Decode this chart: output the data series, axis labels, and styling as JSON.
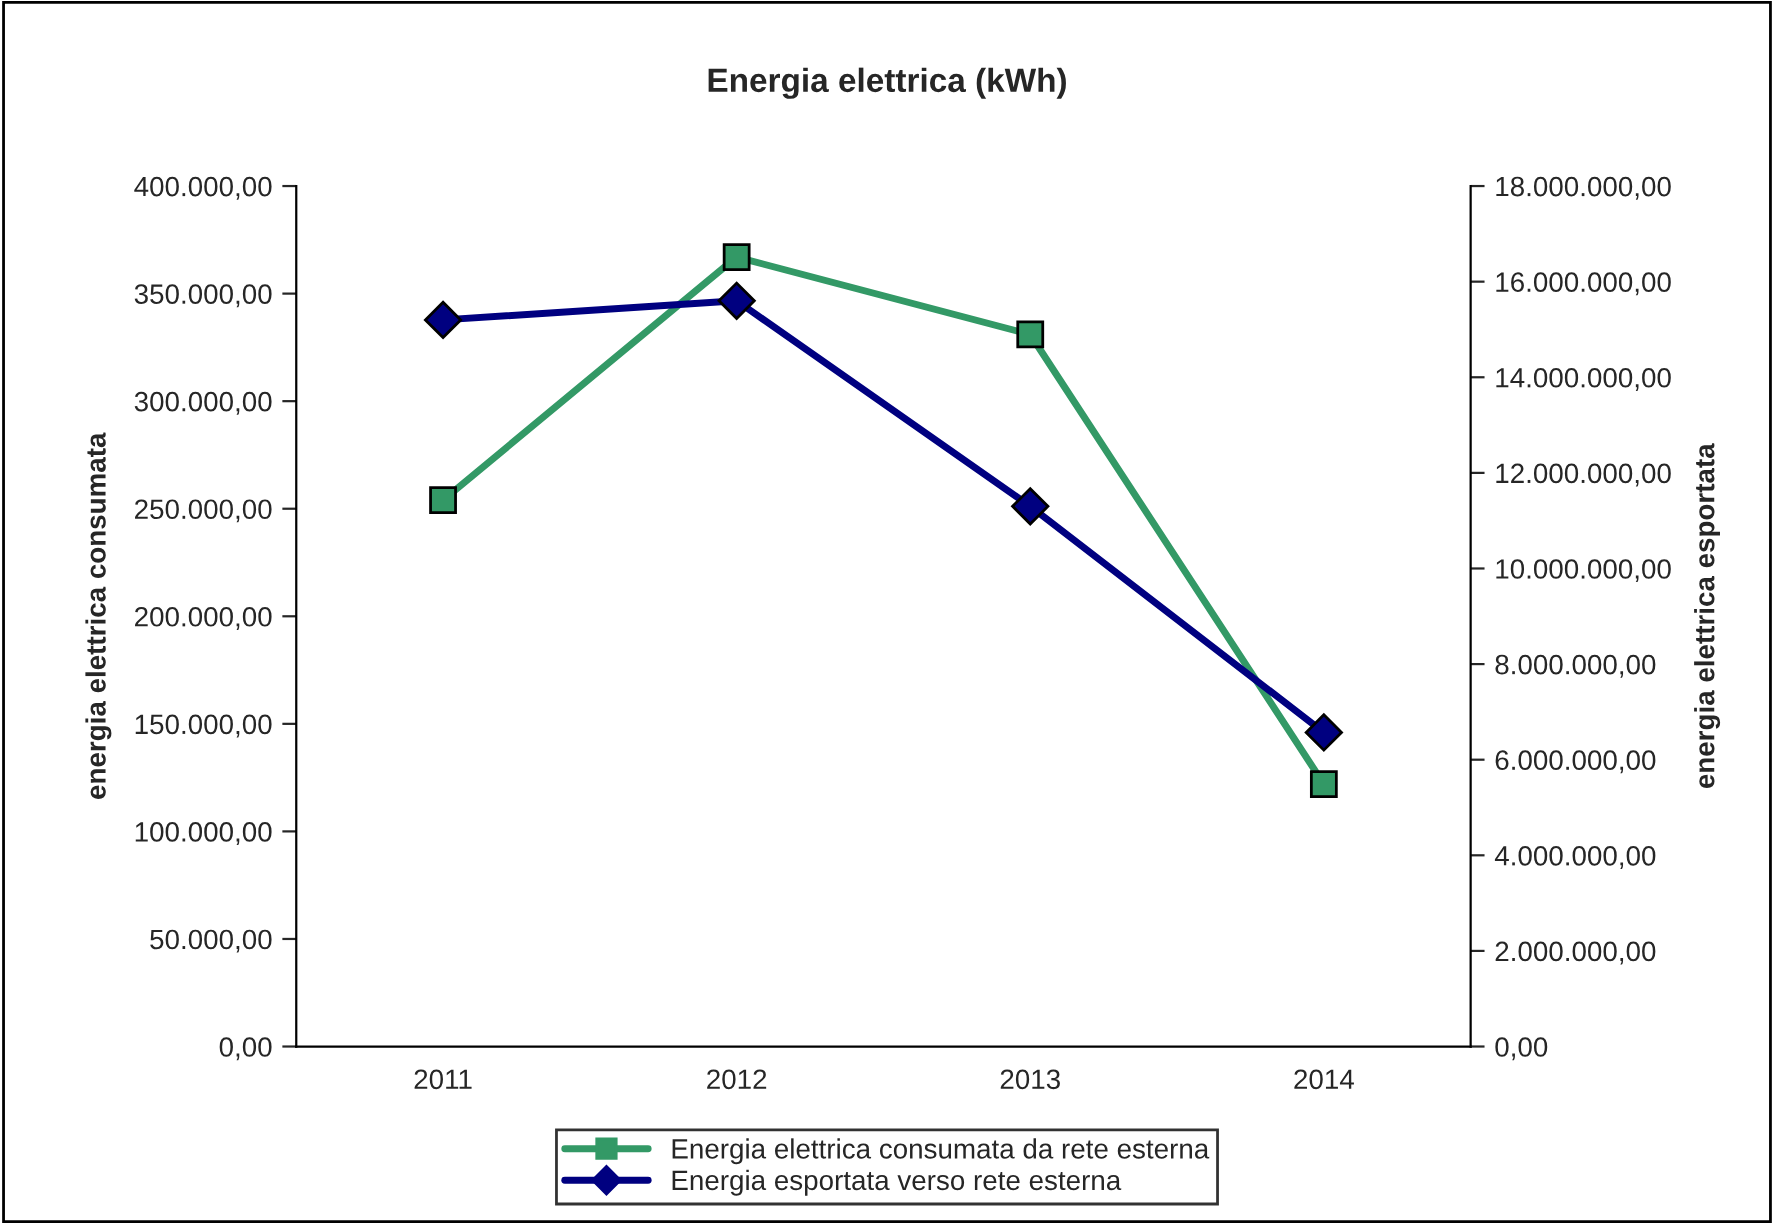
{
  "chart_data": {
    "type": "line",
    "title": "Energia elettrica (kWh)",
    "categories": [
      "2011",
      "2012",
      "2013",
      "2014"
    ],
    "ylabel": "energia elettrica consumata",
    "y2label": "energia elettrica esportata",
    "series": [
      {
        "name": "Energia elettrica consumata da rete esterna",
        "color": "#339966",
        "marker": "square",
        "values": [
          254000,
          367000,
          331000,
          122000
        ]
      },
      {
        "name": "Energia esportata verso rete esterna",
        "color": "#000080",
        "marker": "diamond",
        "axis": "y2",
        "values": [
          15200000,
          15600000,
          11300000,
          6570000
        ]
      }
    ],
    "ylim": [
      0,
      400000
    ],
    "yticks": [
      {
        "value": 0,
        "label": "0,00"
      },
      {
        "value": 50000,
        "label": "50.000,00"
      },
      {
        "value": 100000,
        "label": "100.000,00"
      },
      {
        "value": 150000,
        "label": "150.000,00"
      },
      {
        "value": 200000,
        "label": "200.000,00"
      },
      {
        "value": 250000,
        "label": "250.000,00"
      },
      {
        "value": 300000,
        "label": "300.000,00"
      },
      {
        "value": 350000,
        "label": "350.000,00"
      },
      {
        "value": 400000,
        "label": "400.000,00"
      }
    ],
    "y2lim": [
      0,
      18000000
    ],
    "y2ticks": [
      {
        "value": 0,
        "label": "0,00"
      },
      {
        "value": 2000000,
        "label": "2.000.000,00"
      },
      {
        "value": 4000000,
        "label": "4.000.000,00"
      },
      {
        "value": 6000000,
        "label": "6.000.000,00"
      },
      {
        "value": 8000000,
        "label": "8.000.000,00"
      },
      {
        "value": 10000000,
        "label": "10.000.000,00"
      },
      {
        "value": 12000000,
        "label": "12.000.000,00"
      },
      {
        "value": 14000000,
        "label": "14.000.000,00"
      },
      {
        "value": 16000000,
        "label": "16.000.000,00"
      },
      {
        "value": 18000000,
        "label": "18.000.000,00"
      }
    ],
    "grid": false,
    "legend": "bottom"
  }
}
